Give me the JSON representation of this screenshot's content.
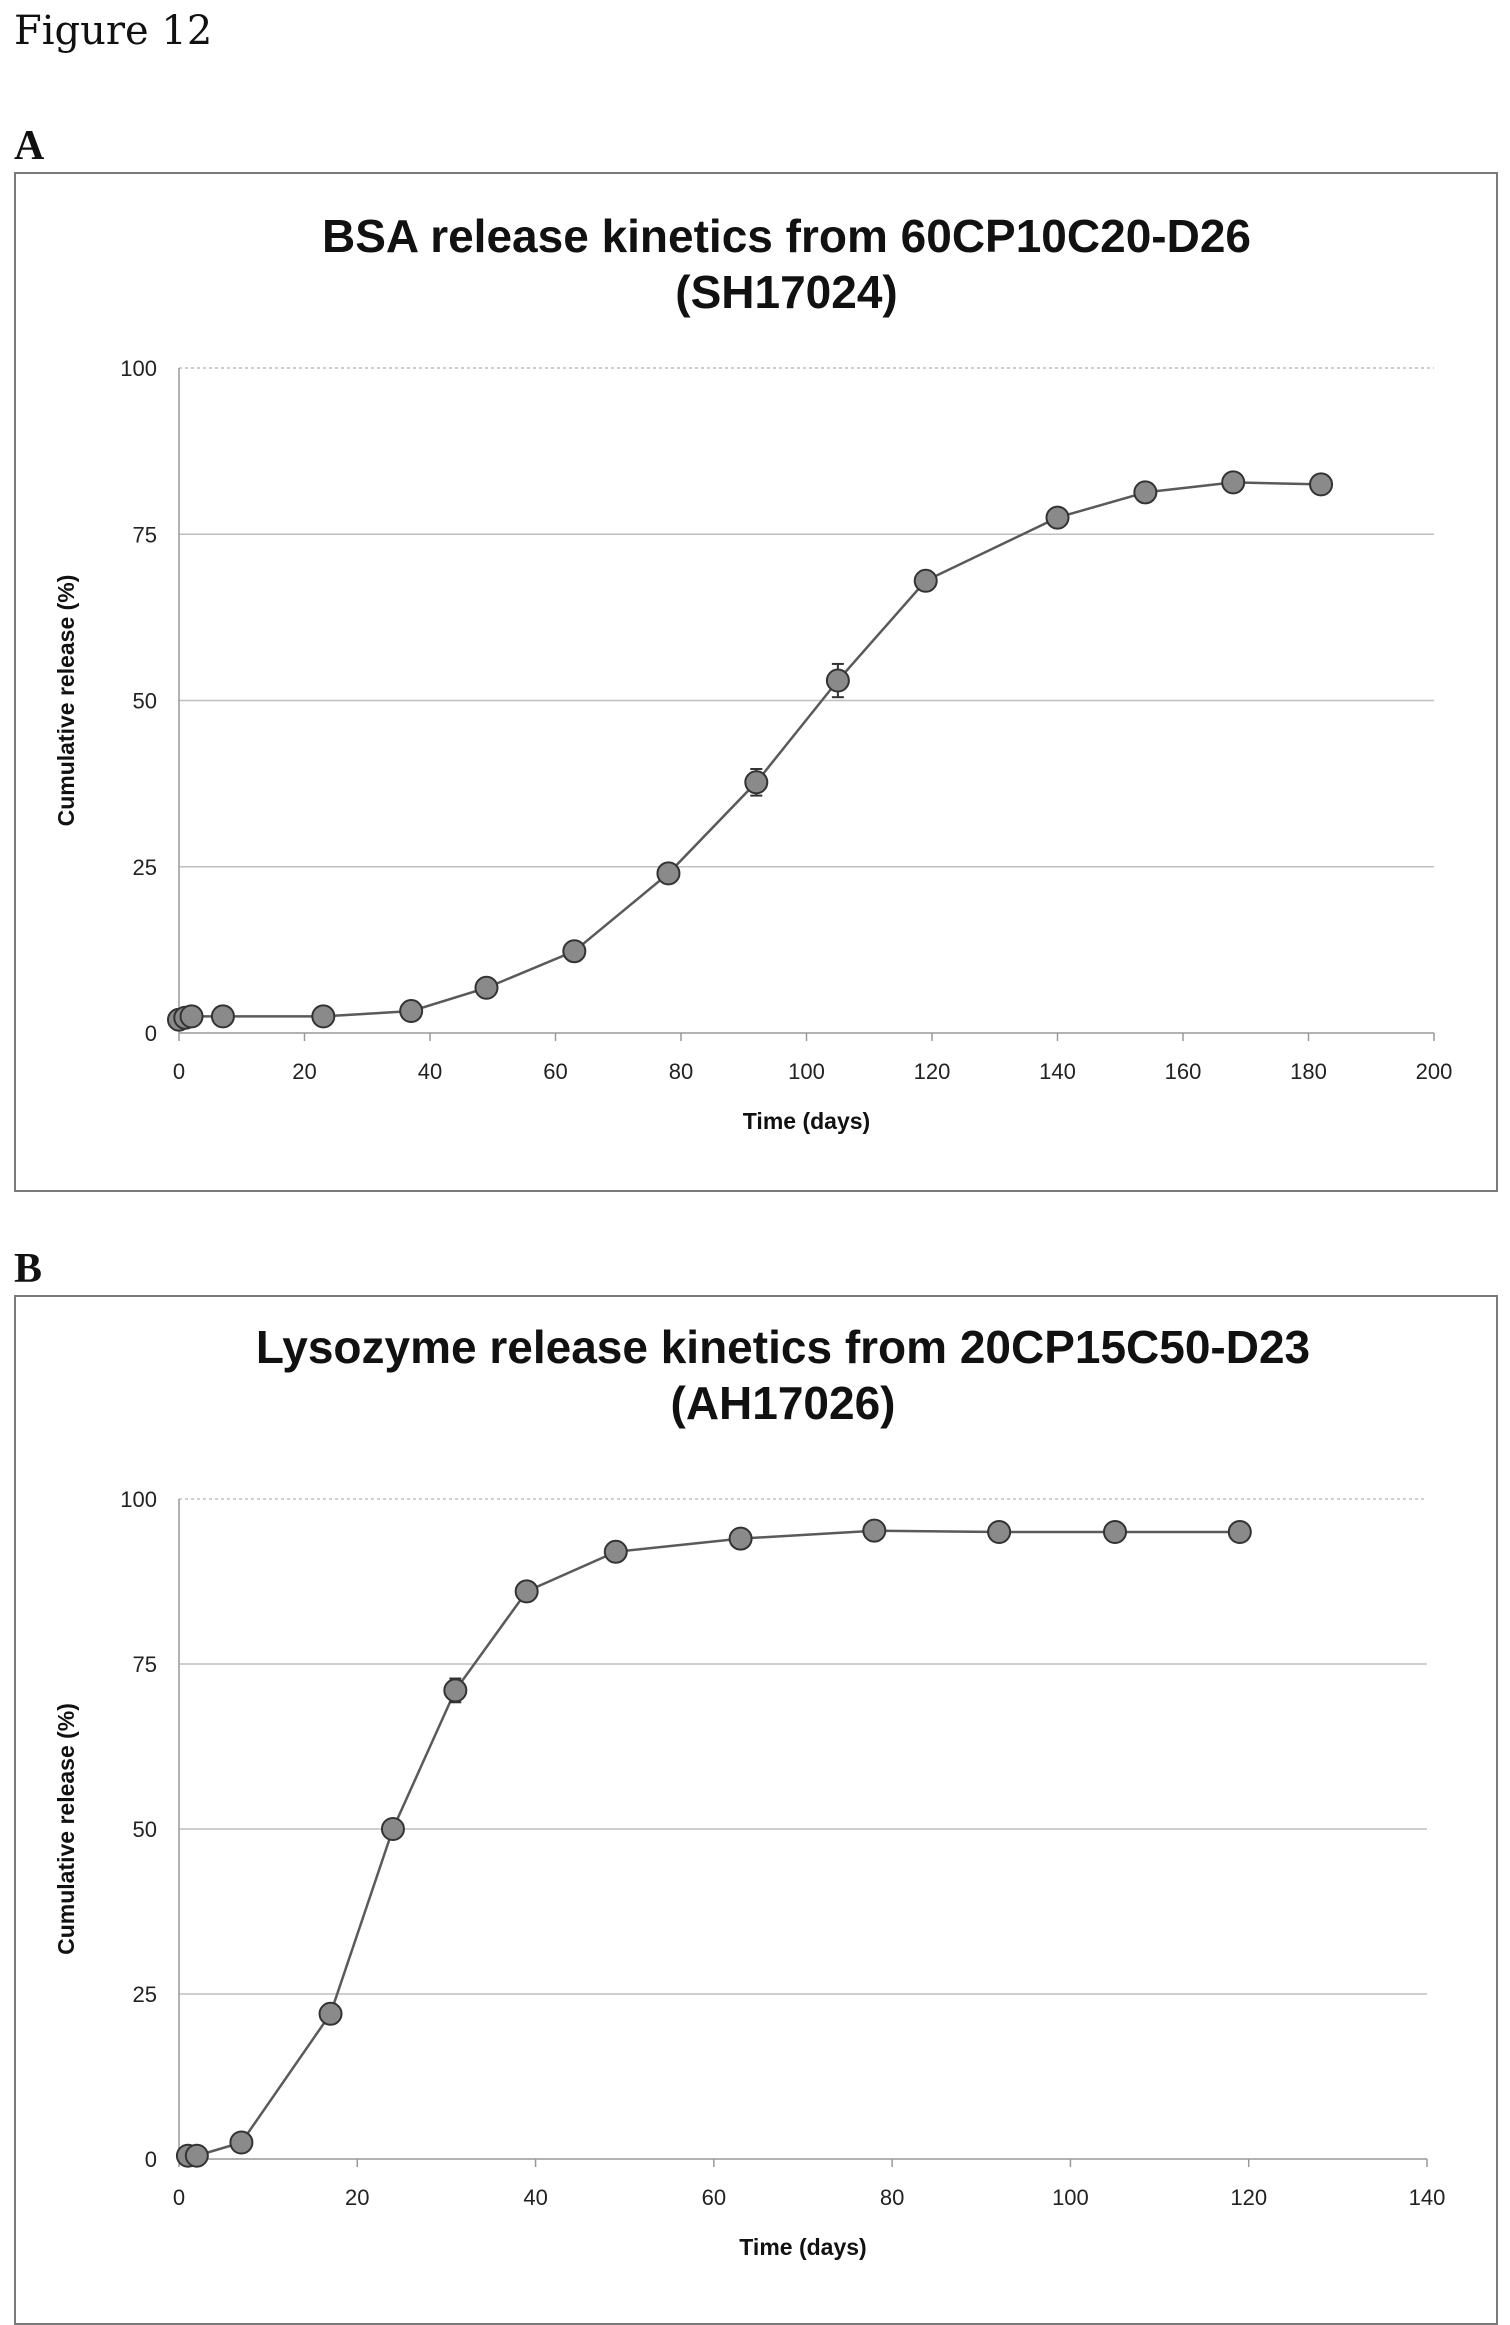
{
  "figure_label": "Figure 12",
  "chart_data": [
    {
      "panel": "A",
      "type": "line",
      "title_lines": [
        "BSA release kinetics from 60CP10C20-D26",
        "(SH17024)"
      ],
      "xlabel": "Time (days)",
      "ylabel": "Cumulative release (%)",
      "xlim": [
        0,
        200
      ],
      "ylim": [
        0,
        100
      ],
      "xticks": [
        0,
        20,
        40,
        60,
        80,
        100,
        120,
        140,
        160,
        180,
        200
      ],
      "yticks": [
        0,
        25,
        50,
        75,
        100
      ],
      "grid": "horizontal",
      "series": [
        {
          "x": [
            0,
            1,
            2,
            7,
            23,
            37,
            49,
            63,
            78,
            92,
            105,
            119,
            140,
            154,
            168,
            182
          ],
          "y": [
            2,
            2.3,
            2.5,
            2.5,
            2.5,
            3.3,
            6.8,
            12.3,
            24,
            37.7,
            53,
            68,
            77.5,
            81.3,
            82.8,
            82.5
          ],
          "error": [
            0,
            0,
            0,
            0,
            0,
            0,
            0,
            0,
            0,
            2,
            2.5,
            0,
            0,
            0,
            0,
            0
          ]
        }
      ],
      "colors": {
        "marker_fill": "#8a8a8a",
        "marker_stroke": "#333333",
        "line": "#5a5a5a",
        "grid": "#bfbfbf"
      }
    },
    {
      "panel": "B",
      "type": "line",
      "title_lines": [
        "Lysozyme release kinetics from 20CP15C50-D23",
        "(AH17026)"
      ],
      "xlabel": "Time (days)",
      "ylabel": "Cumulative release (%)",
      "xlim": [
        0,
        140
      ],
      "ylim": [
        0,
        100
      ],
      "xticks": [
        0,
        20,
        40,
        60,
        80,
        100,
        120,
        140
      ],
      "yticks": [
        0,
        25,
        50,
        75,
        100
      ],
      "grid": "horizontal",
      "series": [
        {
          "x": [
            1,
            2,
            7,
            17,
            24,
            31,
            39,
            49,
            63,
            78,
            92,
            105,
            119
          ],
          "y": [
            0.5,
            0.5,
            2.5,
            22,
            50,
            71,
            86,
            92,
            94,
            95.2,
            95,
            95,
            95
          ],
          "error": [
            0,
            0,
            0,
            0,
            0,
            1.8,
            0,
            0,
            0,
            0,
            0,
            0,
            0
          ]
        }
      ],
      "colors": {
        "marker_fill": "#8a8a8a",
        "marker_stroke": "#333333",
        "line": "#5a5a5a",
        "grid": "#bfbfbf"
      }
    }
  ]
}
